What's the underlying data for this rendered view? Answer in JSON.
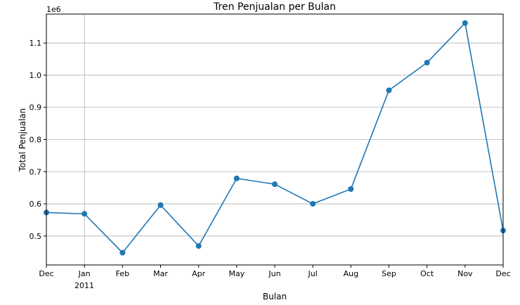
{
  "chart_data": {
    "type": "line",
    "title": "Tren Penjualan per Bulan",
    "xlabel": "Bulan",
    "ylabel": "Total Penjualan",
    "y_offset_label": "1e6",
    "x_tick_labels": [
      "Dec",
      "Jan",
      "Feb",
      "Mar",
      "Apr",
      "May",
      "Jun",
      "Jul",
      "Aug",
      "Sep",
      "Oct",
      "Nov",
      "Dec"
    ],
    "x_year_label": "2011",
    "y_ticks": [
      0.5,
      0.6,
      0.7,
      0.8,
      0.9,
      1.0,
      1.1
    ],
    "y_tick_labels": [
      "0.5",
      "0.6",
      "0.7",
      "0.8",
      "0.9",
      "1.0",
      "1.1"
    ],
    "ylim": [
      0.41,
      1.19
    ],
    "grid": true,
    "color": "#1f77b4",
    "grid_color": "#b0b0b0",
    "values": [
      0.573,
      0.569,
      0.448,
      0.596,
      0.469,
      0.679,
      0.661,
      0.6,
      0.646,
      0.953,
      1.039,
      1.162,
      0.517
    ]
  }
}
